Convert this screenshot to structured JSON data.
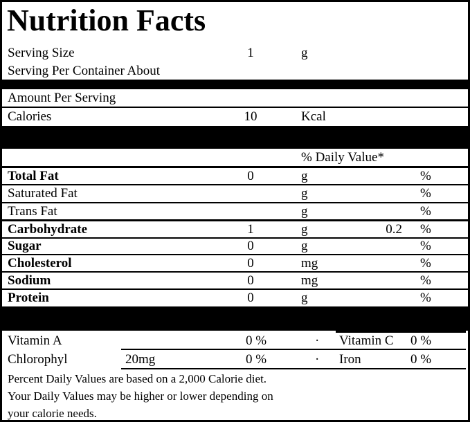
{
  "label": {
    "title": "Nutrition Facts",
    "serving": {
      "size_label": "Serving Size",
      "size_value": "1",
      "size_unit": "g",
      "per_container_label": "Serving Per Container About"
    },
    "amount_per_serving_label": "Amount Per Serving",
    "calories": {
      "label": "Calories",
      "value": "10",
      "unit": "Kcal"
    },
    "daily_value_header": "% Daily Value*",
    "nutrients": [
      {
        "name": "Total Fat",
        "value": "0",
        "unit": "g",
        "dv": "",
        "pct": "%"
      },
      {
        "name": "Saturated Fat",
        "value": "",
        "unit": "g",
        "dv": "",
        "pct": "%"
      },
      {
        "name": "Trans Fat",
        "value": "",
        "unit": "g",
        "dv": "",
        "pct": "%"
      },
      {
        "name": "Carbohydrate",
        "value": "1",
        "unit": "g",
        "dv": "0.2",
        "pct": "%"
      },
      {
        "name": "Sugar",
        "value": "0",
        "unit": "g",
        "dv": "",
        "pct": "%"
      },
      {
        "name": "Cholesterol",
        "value": "0",
        "unit": "mg",
        "dv": "",
        "pct": "%"
      },
      {
        "name": "Sodium",
        "value": "0",
        "unit": "mg",
        "dv": "",
        "pct": "%"
      },
      {
        "name": "Protein",
        "value": "0",
        "unit": "g",
        "dv": "",
        "pct": "%"
      }
    ],
    "micronutrients": [
      {
        "name": "Vitamin A",
        "amount": "",
        "percent": "0 %",
        "separator": "·",
        "name2": "Vitamin C",
        "percent2": "0 %"
      },
      {
        "name": "Chlorophyl",
        "amount": "20mg",
        "percent": "0 %",
        "separator": "·",
        "name2": "Iron",
        "percent2": "0 %"
      }
    ],
    "footnotes": [
      "Percent Daily Values are based on a 2,000 Calorie diet.",
      "Your Daily Values may be higher or lower depending on",
      "your calorie needs."
    ],
    "colors": {
      "background": "#ffffff",
      "text": "#000000",
      "divider_bar": "#000000"
    }
  }
}
